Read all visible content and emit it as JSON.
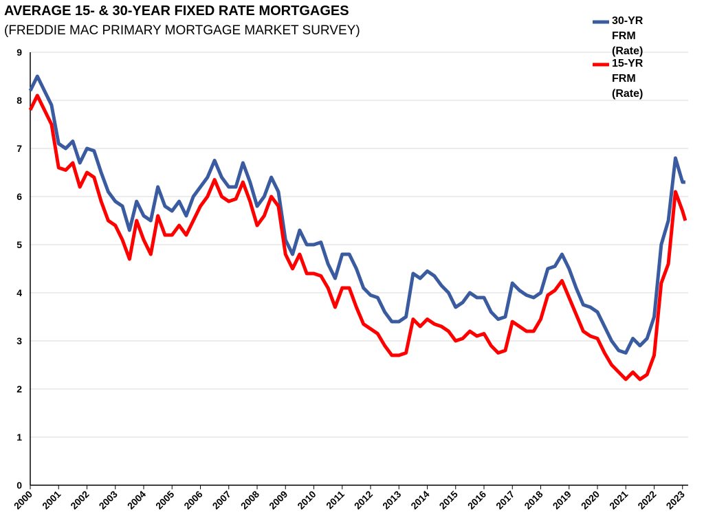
{
  "chart_data": {
    "type": "line",
    "title": "AVERAGE 15- & 30-YEAR FIXED RATE MORTGAGES",
    "subtitle": "(FREDDIE MAC PRIMARY MORTGAGE MARKET SURVEY)",
    "x": [
      2000,
      2000.25,
      2000.5,
      2000.75,
      2001,
      2001.25,
      2001.5,
      2001.75,
      2002,
      2002.25,
      2002.5,
      2002.75,
      2003,
      2003.25,
      2003.5,
      2003.75,
      2004,
      2004.25,
      2004.5,
      2004.75,
      2005,
      2005.25,
      2005.5,
      2005.75,
      2006,
      2006.25,
      2006.5,
      2006.75,
      2007,
      2007.25,
      2007.5,
      2007.75,
      2008,
      2008.25,
      2008.5,
      2008.75,
      2009,
      2009.25,
      2009.5,
      2009.75,
      2010,
      2010.25,
      2010.5,
      2010.75,
      2011,
      2011.25,
      2011.5,
      2011.75,
      2012,
      2012.25,
      2012.5,
      2012.75,
      2013,
      2013.25,
      2013.5,
      2013.75,
      2014,
      2014.25,
      2014.5,
      2014.75,
      2015,
      2015.25,
      2015.5,
      2015.75,
      2016,
      2016.25,
      2016.5,
      2016.75,
      2017,
      2017.25,
      2017.5,
      2017.75,
      2018,
      2018.25,
      2018.5,
      2018.75,
      2019,
      2019.25,
      2019.5,
      2019.75,
      2020,
      2020.25,
      2020.5,
      2020.75,
      2021,
      2021.25,
      2021.5,
      2021.75,
      2022,
      2022.25,
      2022.5,
      2022.75,
      2023,
      2023.1
    ],
    "series": [
      {
        "name": "30-YR FRM (Rate)",
        "color": "#3a5ba0",
        "values": [
          8.2,
          8.5,
          8.2,
          7.9,
          7.1,
          7.0,
          7.15,
          6.7,
          7.0,
          6.95,
          6.5,
          6.1,
          5.9,
          5.8,
          5.3,
          5.9,
          5.6,
          5.5,
          6.2,
          5.8,
          5.7,
          5.9,
          5.6,
          6.0,
          6.2,
          6.4,
          6.75,
          6.4,
          6.2,
          6.2,
          6.7,
          6.3,
          5.8,
          6.0,
          6.4,
          6.1,
          5.1,
          4.8,
          5.3,
          5.0,
          5.0,
          5.05,
          4.6,
          4.3,
          4.8,
          4.8,
          4.5,
          4.1,
          3.95,
          3.9,
          3.6,
          3.4,
          3.4,
          3.5,
          4.4,
          4.3,
          4.45,
          4.35,
          4.15,
          4.0,
          3.7,
          3.8,
          4.0,
          3.9,
          3.9,
          3.6,
          3.45,
          3.5,
          4.2,
          4.05,
          3.95,
          3.9,
          4.0,
          4.5,
          4.55,
          4.8,
          4.5,
          4.1,
          3.75,
          3.7,
          3.6,
          3.3,
          3.0,
          2.8,
          2.75,
          3.05,
          2.9,
          3.05,
          3.5,
          5.0,
          5.5,
          6.8,
          6.3,
          6.3
        ]
      },
      {
        "name": "15-YR FRM (Rate)",
        "color": "#ff0000",
        "values": [
          7.8,
          8.1,
          7.8,
          7.5,
          6.6,
          6.55,
          6.7,
          6.2,
          6.5,
          6.4,
          5.9,
          5.5,
          5.4,
          5.1,
          4.7,
          5.5,
          5.1,
          4.8,
          5.6,
          5.2,
          5.2,
          5.4,
          5.2,
          5.5,
          5.8,
          6.0,
          6.35,
          6.0,
          5.9,
          5.95,
          6.3,
          5.9,
          5.4,
          5.6,
          6.0,
          5.8,
          4.8,
          4.5,
          4.8,
          4.4,
          4.4,
          4.35,
          4.1,
          3.7,
          4.1,
          4.1,
          3.7,
          3.35,
          3.25,
          3.15,
          2.9,
          2.7,
          2.7,
          2.75,
          3.45,
          3.3,
          3.45,
          3.35,
          3.3,
          3.2,
          3.0,
          3.05,
          3.2,
          3.1,
          3.15,
          2.9,
          2.75,
          2.8,
          3.4,
          3.3,
          3.2,
          3.2,
          3.45,
          3.95,
          4.05,
          4.25,
          3.9,
          3.55,
          3.2,
          3.1,
          3.05,
          2.75,
          2.5,
          2.35,
          2.2,
          2.35,
          2.2,
          2.3,
          2.7,
          4.2,
          4.6,
          6.1,
          5.7,
          5.5
        ]
      }
    ],
    "xlim": [
      2000,
      2023.2
    ],
    "xticks": [
      2000,
      2001,
      2002,
      2003,
      2004,
      2005,
      2006,
      2007,
      2008,
      2009,
      2010,
      2011,
      2012,
      2013,
      2014,
      2015,
      2016,
      2017,
      2018,
      2019,
      2020,
      2021,
      2022,
      2023
    ],
    "ylim": [
      0,
      9
    ],
    "yticks": [
      0,
      1,
      2,
      3,
      4,
      5,
      6,
      7,
      8,
      9
    ],
    "grid": true,
    "legend": "top-right"
  }
}
